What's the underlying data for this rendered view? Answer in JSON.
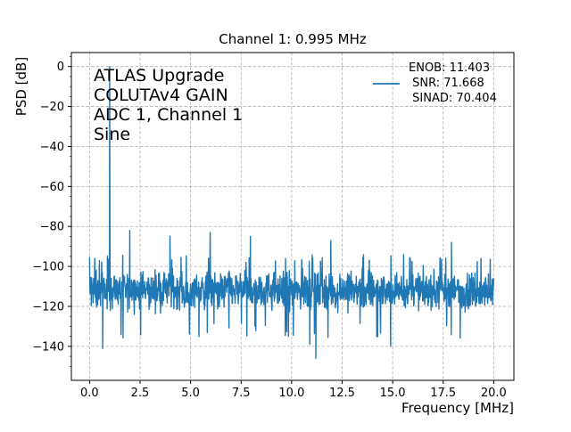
{
  "chart_data": {
    "type": "line",
    "title": "Channel 1: 0.995 MHz",
    "xlabel": "Frequency [MHz]",
    "ylabel": "PSD [dB]",
    "xlim": [
      -0.9,
      21.0
    ],
    "ylim": [
      -157,
      7
    ],
    "xticks": [
      0.0,
      2.5,
      5.0,
      7.5,
      10.0,
      12.5,
      15.0,
      17.5,
      20.0
    ],
    "xtick_labels": [
      "0.0",
      "2.5",
      "5.0",
      "7.5",
      "10.0",
      "12.5",
      "15.0",
      "17.5",
      "20.0"
    ],
    "yticks": [
      0,
      -20,
      -40,
      -60,
      -80,
      -100,
      -120,
      -140
    ],
    "ytick_labels": [
      "0",
      "−20",
      "−40",
      "−60",
      "−80",
      "−100",
      "−120",
      "−140"
    ],
    "grid": true,
    "grid_style": "dashed",
    "color": "#1f77b4",
    "annotation_lines": [
      "ATLAS Upgrade",
      "COLUTAv4 GAIN",
      "ADC 1, Channel 1",
      "Sine"
    ],
    "legend": {
      "placement": "top-right",
      "lines": [
        "ENOB: 11.403",
        " SNR: 71.668",
        " SINAD: 70.404"
      ]
    },
    "series": [
      {
        "noise_floor_db": -112,
        "noise_band_db": [
          -128,
          -98
        ],
        "x_range_mhz": [
          0.0,
          20.0
        ],
        "peaks": [
          {
            "x": 0.995,
            "y": 0
          },
          {
            "x": 1.99,
            "y": -82
          },
          {
            "x": 3.98,
            "y": -85
          },
          {
            "x": 5.97,
            "y": -83
          },
          {
            "x": 7.96,
            "y": -85
          },
          {
            "x": 11.94,
            "y": -87
          },
          {
            "x": 17.91,
            "y": -88
          }
        ],
        "dips": [
          {
            "x": 1.99,
            "y": -150
          },
          {
            "x": 11.2,
            "y": -146
          },
          {
            "x": 0.65,
            "y": -141
          },
          {
            "x": 14.9,
            "y": -140
          },
          {
            "x": 10.9,
            "y": -139
          }
        ]
      }
    ]
  }
}
